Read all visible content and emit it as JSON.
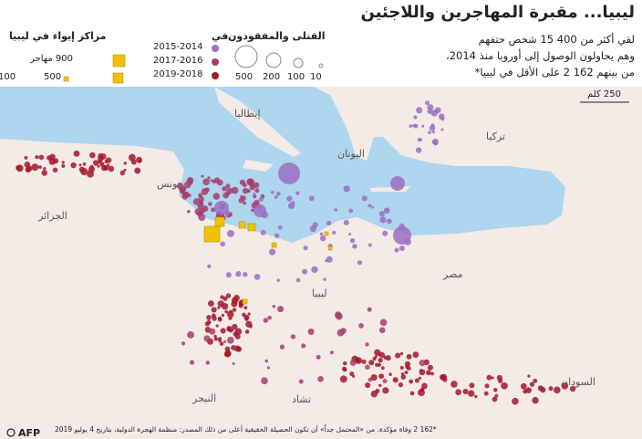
{
  "header": {
    "title": "ليبيا... مقبرة المهاجرين واللاجئين",
    "subtitle": [
      "لقي أكثر من 400 15 شخص حتفهم",
      "وهم يحاولون الوصول إلى أوروبا منذ 2014،",
      "من بينهم 162 2 على الأقل في ليبيا*"
    ]
  },
  "legend_deaths": {
    "title": "القتلى والمفقودون",
    "in": "في",
    "periods": [
      {
        "label": "2015-2014",
        "color": "#9b6fc3"
      },
      {
        "label": "2017-2016",
        "color": "#a63d6e"
      },
      {
        "label": "2019-2018",
        "color": "#a3162a"
      }
    ],
    "sizes": [
      "500",
      "200",
      "100",
      "10"
    ]
  },
  "legend_shelters": {
    "title": "مراكز إيواء في ليبيا",
    "sizes": [
      "900 مهاجر",
      "500",
      "100"
    ],
    "color": "#f2c200"
  },
  "scale": "250 كلم",
  "places": [
    "إيطاليا",
    "تركيا",
    "اليونان",
    "تونس",
    "الجزائر",
    "مصر",
    "ليبيا",
    "النيجر",
    "تشاد",
    "السودان"
  ],
  "footer": {
    "note": "*162 2 وفاة مؤكدة. من «المحتمل جداً» أن تكون الحصيلة الحقيقية أعلى من ذلك المصدر: منظمة الهجرة الدولية، بتاريخ 4 يوليو 2019",
    "logo": "AFP"
  }
}
